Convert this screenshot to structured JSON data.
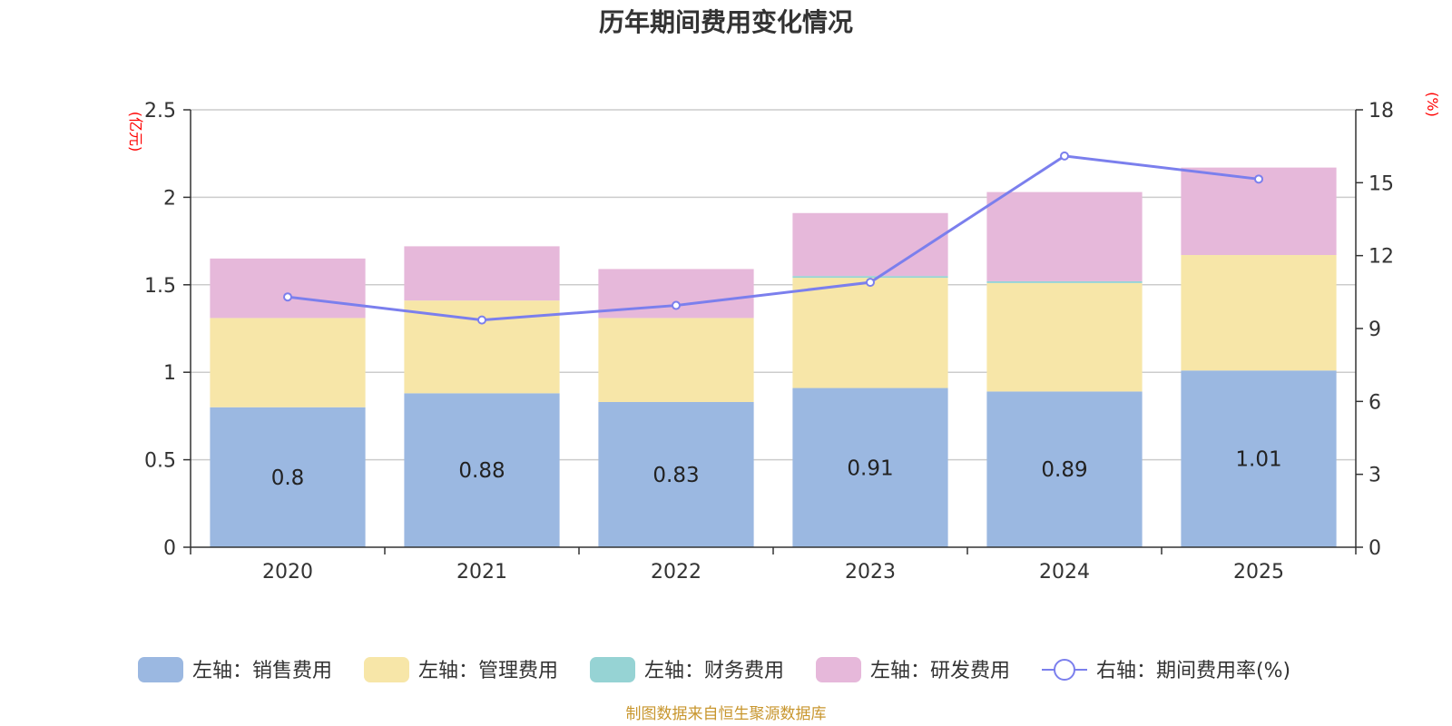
{
  "chart_data": {
    "type": "bar",
    "stacked": true,
    "title": "历年期间费用变化情况",
    "categories": [
      "2020",
      "2021",
      "2022",
      "2023",
      "2024",
      "2025"
    ],
    "left_axis": {
      "unit": "(亿元)",
      "ylim": [
        0,
        2.5
      ],
      "ticks": [
        "0",
        "0.5",
        "1",
        "1.5",
        "2",
        "2.5"
      ]
    },
    "right_axis": {
      "unit": "(%)",
      "ylim": [
        0,
        18
      ],
      "ticks": [
        "0",
        "3",
        "6",
        "9",
        "12",
        "15",
        "18"
      ]
    },
    "series": [
      {
        "name": "左轴：销售费用",
        "axis": "left",
        "color": "#9bb8e1",
        "values": [
          0.8,
          0.88,
          0.83,
          0.91,
          0.89,
          1.01
        ],
        "labels": [
          "0.8",
          "0.88",
          "0.83",
          "0.91",
          "0.89",
          "1.01"
        ]
      },
      {
        "name": "左轴：管理费用",
        "axis": "left",
        "color": "#f7e6a8",
        "values": [
          0.51,
          0.53,
          0.48,
          0.63,
          0.62,
          0.66
        ]
      },
      {
        "name": "左轴：财务费用",
        "axis": "left",
        "color": "#96d3d4",
        "values": [
          0.0,
          0.0,
          0.0,
          0.01,
          0.01,
          0.0
        ]
      },
      {
        "name": "左轴：研发费用",
        "axis": "left",
        "color": "#e6b8da",
        "values": [
          0.34,
          0.31,
          0.28,
          0.36,
          0.51,
          0.5
        ]
      },
      {
        "name": "右轴：期间费用率(%)",
        "axis": "right",
        "type": "line",
        "color": "#7b7fed",
        "values": [
          10.3,
          9.35,
          9.95,
          10.9,
          16.1,
          15.15
        ]
      }
    ]
  },
  "source": "制图数据来自恒生聚源数据库"
}
